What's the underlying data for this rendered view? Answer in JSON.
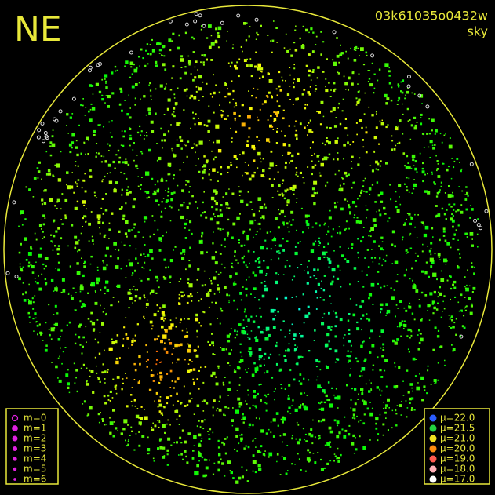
{
  "header": {
    "direction": "NE",
    "id": "03k61035o0432w",
    "mode": "sky"
  },
  "magnitude_legend": {
    "color": "#e020e0",
    "items": [
      "m=0",
      "m=1",
      "m=2",
      "m=3",
      "m=4",
      "m=5",
      "m=6"
    ]
  },
  "brightness_legend": {
    "items": [
      {
        "label": "μ=22.0",
        "color": "#2a5cff"
      },
      {
        "label": "μ=21.5",
        "color": "#22d040"
      },
      {
        "label": "μ=21.0",
        "color": "#f0e020"
      },
      {
        "label": "μ=20.0",
        "color": "#ff8c10"
      },
      {
        "label": "μ=19.0",
        "color": "#ff5a50"
      },
      {
        "label": "μ=18.0",
        "color": "#ffb0b8"
      },
      {
        "label": "μ=17.0",
        "color": "#ffffff"
      }
    ]
  }
}
